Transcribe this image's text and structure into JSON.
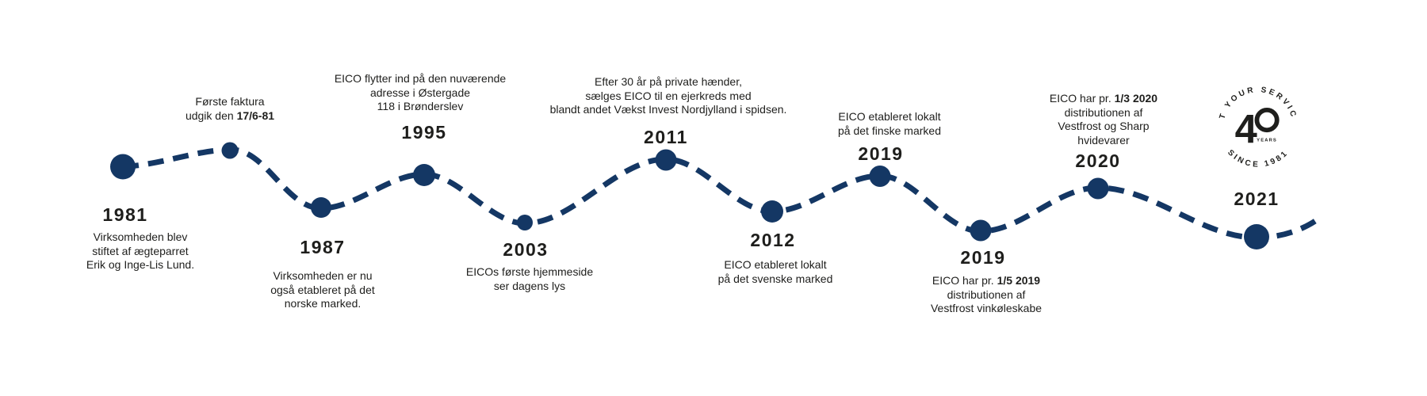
{
  "colors": {
    "accent": "#143764",
    "ink": "#1e1e1c"
  },
  "badge": {
    "top_text": "AT YOUR SERVICE",
    "bottom_text": "SINCE 1981",
    "big_digit": "4",
    "years_label": "YEARS"
  },
  "events": [
    {
      "year": "1981",
      "description": [
        [
          {
            "t": "Virksomheden blev"
          }
        ],
        [
          {
            "t": "stiftet af ægteparret"
          }
        ],
        [
          {
            "t": "Erik og Inge-Lis Lund."
          }
        ]
      ]
    },
    {
      "year": null,
      "description": [
        [
          {
            "t": "Første faktura"
          }
        ],
        [
          {
            "t": "udgik den "
          },
          {
            "t": "17/6-81",
            "b": true
          }
        ]
      ]
    },
    {
      "year": "1987",
      "description": [
        [
          {
            "t": "Virksomheden er nu"
          }
        ],
        [
          {
            "t": "også etableret på det"
          }
        ],
        [
          {
            "t": "norske marked."
          }
        ]
      ]
    },
    {
      "year": "1995",
      "description": [
        [
          {
            "t": "EICO flytter ind på den nuværende"
          }
        ],
        [
          {
            "t": "adresse i Østergade"
          }
        ],
        [
          {
            "t": "118 i Brønderslev"
          }
        ]
      ]
    },
    {
      "year": "2003",
      "description": [
        [
          {
            "t": "EICOs første hjemmeside"
          }
        ],
        [
          {
            "t": "ser dagens lys"
          }
        ]
      ]
    },
    {
      "year": "2011",
      "description": [
        [
          {
            "t": "Efter 30 år på private hænder,"
          }
        ],
        [
          {
            "t": "sælges EICO til en ejerkreds med"
          }
        ],
        [
          {
            "t": "blandt andet Vækst Invest Nordjylland i spidsen."
          }
        ]
      ]
    },
    {
      "year": "2012",
      "description": [
        [
          {
            "t": "EICO etableret lokalt"
          }
        ],
        [
          {
            "t": "på det svenske marked"
          }
        ]
      ]
    },
    {
      "year": "2019",
      "description": [
        [
          {
            "t": "EICO etableret lokalt"
          }
        ],
        [
          {
            "t": "på det finske marked"
          }
        ]
      ]
    },
    {
      "year": "2019",
      "description": [
        [
          {
            "t": "EICO har pr. "
          },
          {
            "t": "1/5 2019",
            "b": true
          }
        ],
        [
          {
            "t": "distributionen af"
          }
        ],
        [
          {
            "t": "Vestfrost vinkøleskabe"
          }
        ]
      ]
    },
    {
      "year": "2020",
      "description": [
        [
          {
            "t": "EICO har pr. "
          },
          {
            "t": "1/3 2020",
            "b": true
          }
        ],
        [
          {
            "t": "distributionen af"
          }
        ],
        [
          {
            "t": "Vestfrost og Sharp"
          }
        ],
        [
          {
            "t": "hvidevarer"
          }
        ]
      ]
    },
    {
      "year": "2021",
      "description": []
    }
  ]
}
